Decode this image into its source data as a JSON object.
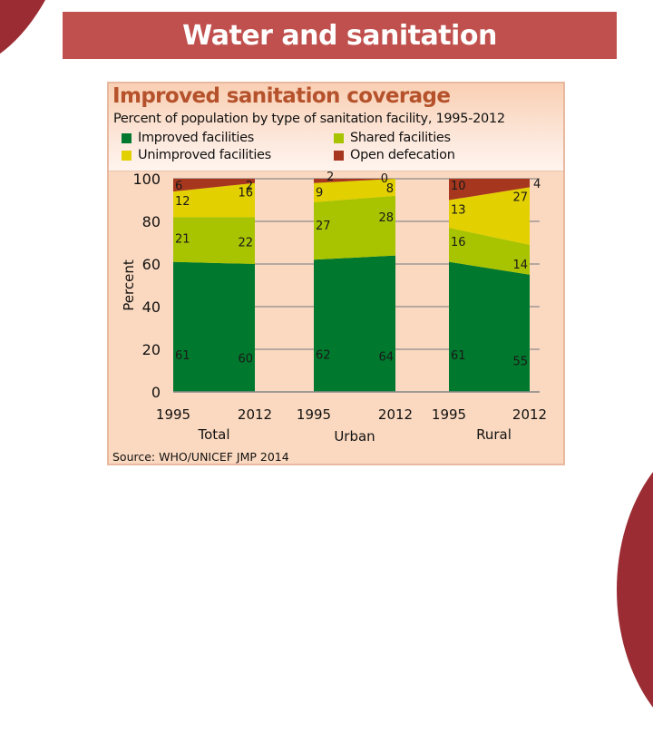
{
  "slide": {
    "title": "Water and sanitation",
    "accent_color": "#c0504d",
    "corner_color": "#9b2c33"
  },
  "chart_data": {
    "type": "area",
    "stacked": true,
    "title": "Improved sanitation coverage",
    "subtitle": "Percent of population by type of sanitation facility, 1995-2012",
    "source": "Source:  WHO/UNICEF JMP 2014",
    "ylabel": "Percent",
    "xlabel": "",
    "ylim": [
      0,
      100
    ],
    "yticks": [
      0,
      20,
      40,
      60,
      80,
      100
    ],
    "grid": true,
    "legend_position": "top",
    "legend": [
      {
        "name": "Improved facilities",
        "color": "#00782d"
      },
      {
        "name": "Shared facilities",
        "color": "#a8c400"
      },
      {
        "name": "Unimproved facilities",
        "color": "#e3d000"
      },
      {
        "name": "Open defecation",
        "color": "#a6361e"
      }
    ],
    "panels": [
      {
        "name": "Total",
        "x": [
          "1995",
          "2012"
        ],
        "series": [
          {
            "name": "Improved facilities",
            "values": [
              61,
              60
            ]
          },
          {
            "name": "Shared facilities",
            "values": [
              21,
              22
            ]
          },
          {
            "name": "Unimproved facilities",
            "values": [
              12,
              16
            ]
          },
          {
            "name": "Open defecation",
            "values": [
              6,
              2
            ]
          }
        ]
      },
      {
        "name": "Urban",
        "x": [
          "1995",
          "2012"
        ],
        "series": [
          {
            "name": "Improved facilities",
            "values": [
              62,
              64
            ]
          },
          {
            "name": "Shared facilities",
            "values": [
              27,
              28
            ]
          },
          {
            "name": "Unimproved facilities",
            "values": [
              9,
              8
            ]
          },
          {
            "name": "Open defecation",
            "values": [
              2,
              0
            ]
          }
        ]
      },
      {
        "name": "Rural",
        "x": [
          "1995",
          "2012"
        ],
        "series": [
          {
            "name": "Improved facilities",
            "values": [
              61,
              55
            ]
          },
          {
            "name": "Shared facilities",
            "values": [
              16,
              14
            ]
          },
          {
            "name": "Unimproved facilities",
            "values": [
              13,
              27
            ]
          },
          {
            "name": "Open defecation",
            "values": [
              10,
              4
            ]
          }
        ]
      }
    ]
  }
}
